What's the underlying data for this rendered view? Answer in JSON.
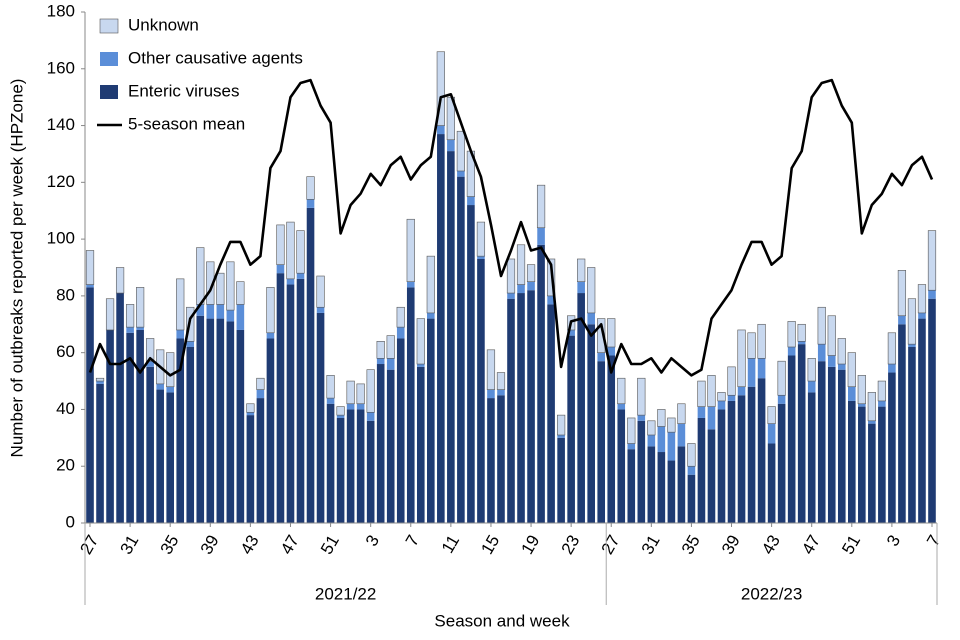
{
  "chart_data": {
    "type": "bar",
    "stacked": true,
    "x_label": "Season and week",
    "y_label": "Number of outbreaks reported per week (HPZone)",
    "ylim": [
      0,
      180
    ],
    "yticks": [
      0,
      20,
      40,
      60,
      80,
      100,
      120,
      140,
      160,
      180
    ],
    "grid": false,
    "legend": "top-left",
    "categories": [
      "27",
      null,
      null,
      null,
      "31",
      null,
      null,
      null,
      "35",
      null,
      null,
      null,
      "39",
      null,
      null,
      null,
      "43",
      null,
      null,
      null,
      "47",
      null,
      null,
      null,
      "51",
      null,
      null,
      null,
      "3",
      null,
      null,
      null,
      "7",
      null,
      null,
      null,
      "11",
      null,
      null,
      null,
      "15",
      null,
      null,
      null,
      "19",
      null,
      null,
      null,
      "23",
      null,
      null,
      null,
      "27",
      null,
      null,
      null,
      "31",
      null,
      null,
      null,
      "35",
      null,
      null,
      null,
      "39",
      null,
      null,
      null,
      "43",
      null,
      null,
      null,
      "47",
      null,
      null,
      null,
      "51",
      null,
      null,
      null,
      "3",
      null,
      null,
      null,
      "7"
    ],
    "seasons": [
      {
        "label": "2021/22",
        "weeks": 52
      },
      {
        "label": "2022/23",
        "weeks": 33
      }
    ],
    "series": [
      {
        "name": "Enteric viruses",
        "color": "#1f3b73",
        "values": [
          83,
          49,
          68,
          81,
          67,
          68,
          55,
          47,
          46,
          65,
          62,
          73,
          72,
          72,
          71,
          68,
          38,
          44,
          65,
          88,
          84,
          86,
          111,
          74,
          42,
          37,
          40,
          40,
          36,
          56,
          54,
          65,
          83,
          55,
          72,
          137,
          131,
          122,
          112,
          93,
          44,
          45,
          79,
          81,
          82,
          98,
          77,
          30,
          66,
          81,
          70,
          57,
          59,
          40,
          26,
          36,
          27,
          25,
          22,
          27,
          17,
          37,
          33,
          40,
          43,
          45,
          48,
          51,
          28,
          42,
          59,
          63,
          46,
          57,
          55,
          54,
          43,
          41,
          35,
          41,
          53,
          70,
          62,
          72,
          79
        ]
      },
      {
        "name": "Other causative agents",
        "color": "#5b8ed8",
        "values": [
          1,
          1,
          0,
          0,
          2,
          1,
          2,
          2,
          2,
          3,
          2,
          4,
          5,
          5,
          4,
          9,
          1,
          3,
          2,
          3,
          2,
          2,
          3,
          2,
          2,
          1,
          2,
          2,
          3,
          2,
          4,
          4,
          2,
          1,
          2,
          3,
          4,
          2,
          3,
          1,
          3,
          2,
          2,
          3,
          3,
          6,
          3,
          1,
          2,
          4,
          4,
          3,
          3,
          2,
          2,
          2,
          4,
          9,
          10,
          8,
          3,
          4,
          8,
          3,
          2,
          3,
          10,
          7,
          7,
          3,
          3,
          1,
          4,
          6,
          4,
          2,
          5,
          1,
          1,
          2,
          3,
          3,
          1,
          2,
          3
        ]
      },
      {
        "name": "Unknown",
        "color": "#c8d8ef",
        "values": [
          12,
          1,
          11,
          9,
          8,
          14,
          8,
          12,
          12,
          18,
          12,
          20,
          15,
          11,
          17,
          8,
          3,
          4,
          16,
          14,
          20,
          15,
          8,
          11,
          8,
          3,
          8,
          7,
          15,
          6,
          8,
          7,
          22,
          16,
          20,
          26,
          15,
          14,
          16,
          12,
          14,
          6,
          12,
          14,
          6,
          15,
          13,
          7,
          5,
          8,
          16,
          12,
          10,
          9,
          9,
          13,
          5,
          6,
          5,
          7,
          8,
          9,
          11,
          3,
          10,
          20,
          9,
          12,
          6,
          12,
          9,
          6,
          8,
          13,
          14,
          9,
          12,
          10,
          10,
          7,
          11,
          16,
          16,
          10,
          21
        ]
      },
      {
        "name": "5-season mean",
        "type": "line",
        "color": "#000000",
        "values": [
          53,
          63,
          56,
          56,
          58,
          53,
          58,
          55,
          52,
          54,
          72,
          77,
          82,
          91,
          99,
          99,
          91,
          94,
          125,
          131,
          150,
          155,
          156,
          147,
          141,
          102,
          112,
          116,
          123,
          119,
          126,
          129,
          121,
          126,
          129,
          150,
          151,
          141,
          131,
          122,
          105,
          87,
          96,
          106,
          96,
          97,
          91,
          55,
          71,
          72,
          66,
          70,
          53,
          63,
          56,
          56,
          58,
          53,
          58,
          55,
          52,
          54,
          72,
          77,
          82,
          91,
          99,
          99,
          91,
          94,
          125,
          131,
          150,
          155,
          156,
          147,
          141,
          102,
          112,
          116,
          123,
          119,
          126,
          129,
          121
        ]
      }
    ]
  }
}
